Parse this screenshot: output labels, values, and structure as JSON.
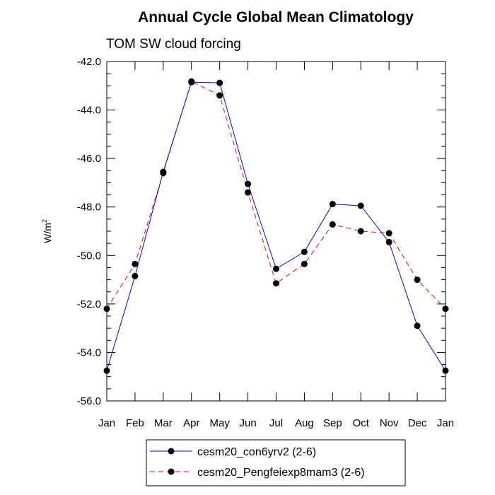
{
  "chart_data": {
    "type": "line",
    "title": "Annual Cycle Global Mean Climatology",
    "subtitle": "TOM SW cloud forcing",
    "xlabel": "",
    "ylabel_base": "W/m",
    "ylabel_sup": "2",
    "categories": [
      "Jan",
      "Feb",
      "Mar",
      "Apr",
      "May",
      "Jun",
      "Jul",
      "Aug",
      "Sep",
      "Oct",
      "Nov",
      "Dec",
      "Jan"
    ],
    "ylim": [
      -56.0,
      -42.0
    ],
    "yticks": [
      -42.0,
      -44.0,
      -46.0,
      -48.0,
      -50.0,
      -52.0,
      -54.0,
      -56.0
    ],
    "ytick_labels": [
      "-42.0",
      "-44.0",
      "-46.0",
      "-48.0",
      "-50.0",
      "-52.0",
      "-54.0",
      "-56.0"
    ],
    "series": [
      {
        "name": "cesm20_con6yrv2 (2-6)",
        "color": "#0000ff",
        "dash": "solid",
        "values": [
          -54.75,
          -50.85,
          -46.55,
          -42.85,
          -42.88,
          -47.05,
          -50.55,
          -49.85,
          -47.88,
          -47.95,
          -49.45,
          -52.9,
          -54.75
        ]
      },
      {
        "name": "cesm20_Pengfeiexp8mam3 (2-6)",
        "color": "#ff0000",
        "dash": "dashed",
        "values": [
          -52.2,
          -50.35,
          -46.6,
          -42.82,
          -43.4,
          -47.4,
          -51.15,
          -50.35,
          -48.72,
          -49.0,
          -49.08,
          -51.0,
          -52.2
        ]
      }
    ],
    "legend_position": "bottom"
  }
}
